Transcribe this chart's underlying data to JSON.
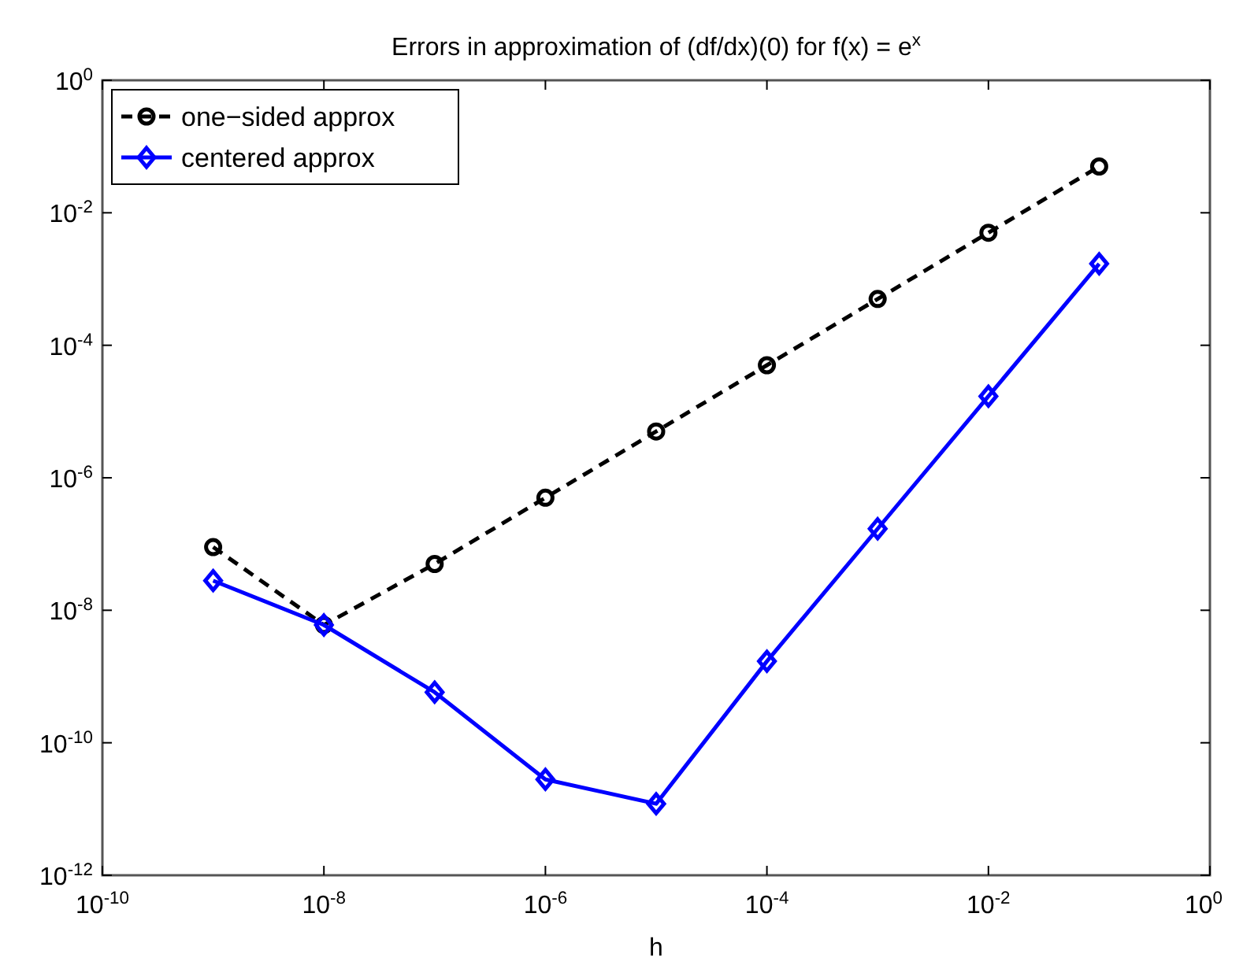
{
  "chart_data": {
    "type": "line",
    "title": "Errors in approximation of (df/dx)(0) for f(x) = e$^{x}$",
    "xlabel": "h",
    "log": "xy",
    "legend": "top left",
    "grid": false,
    "x": [
      1e-09,
      1e-08,
      1e-07,
      1e-06,
      1e-05,
      0.0001,
      0.001,
      0.01,
      0.1
    ],
    "xlim": [
      1e-10,
      1
    ],
    "xticks": [
      {
        "value": 1e-10,
        "label": "10$^{-10}$"
      },
      {
        "value": 1e-08,
        "label": "10$^{-8}$"
      },
      {
        "value": 1e-06,
        "label": "10$^{-6}$"
      },
      {
        "value": 0.0001,
        "label": "10$^{-4}$"
      },
      {
        "value": 0.01,
        "label": "10$^{-2}$"
      },
      {
        "value": 1,
        "label": "10$^{0}$"
      }
    ],
    "ylim": [
      1e-12,
      1
    ],
    "yticks": [
      {
        "value": 1e-12,
        "label": "10$^{-12}$"
      },
      {
        "value": 1e-10,
        "label": "10$^{-10}$"
      },
      {
        "value": 1e-08,
        "label": "10$^{-8}$"
      },
      {
        "value": 1e-06,
        "label": "10$^{-6}$"
      },
      {
        "value": 0.0001,
        "label": "10$^{-4}$"
      },
      {
        "value": 0.01,
        "label": "10$^{-2}$"
      },
      {
        "value": 1,
        "label": "10$^{0}$"
      }
    ],
    "series": [
      {
        "name": "one−sided approx",
        "color": "#000000",
        "marker": "circle",
        "line_style": "dashed",
        "values": [
          9e-08,
          6e-09,
          5e-08,
          5e-07,
          5e-06,
          5e-05,
          0.0005,
          0.005,
          0.05
        ]
      },
      {
        "name": "centered approx",
        "color": "#0000ff",
        "marker": "diamond",
        "line_style": "solid",
        "values": [
          2.8e-08,
          6e-09,
          5.8e-10,
          2.8e-11,
          1.2e-11,
          1.7e-09,
          1.7e-07,
          1.7e-05,
          0.0017
        ]
      }
    ]
  }
}
